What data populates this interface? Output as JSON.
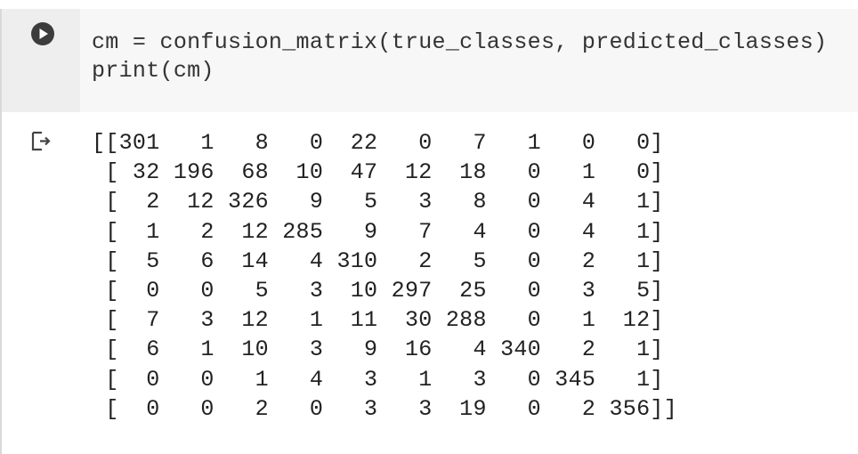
{
  "cell": {
    "code": [
      "cm = confusion_matrix(true_classes, predicted_classes)",
      "print(cm)"
    ],
    "output": [
      "[[301   1   8   0  22   0   7   1   0   0]",
      " [ 32 196  68  10  47  12  18   0   1   0]",
      " [  2  12 326   9   5   3   8   0   4   1]",
      " [  1   2  12 285   9   7   4   0   4   1]",
      " [  5   6  14   4 310   2   5   0   2   1]",
      " [  0   0   5   3  10 297  25   0   3   5]",
      " [  7   3  12   1  11  30 288   0   1  12]",
      " [  6   1  10   3   9  16   4 340   2   1]",
      " [  0   0   1   4   3   1   3   0 345   1]",
      " [  0   0   2   0   3   3  19   0   2 356]]"
    ]
  }
}
